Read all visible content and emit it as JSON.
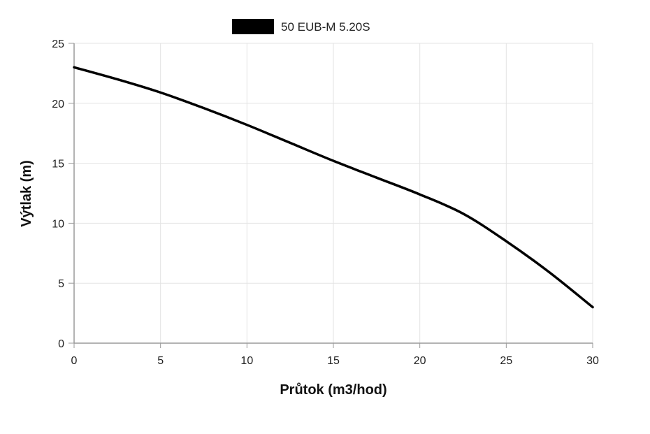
{
  "chart_data": {
    "type": "line",
    "xlabel": "Průtok (m3/hod)",
    "ylabel": "Výtlak (m)",
    "xlim": [
      0,
      30
    ],
    "ylim": [
      0,
      25
    ],
    "x_ticks": [
      "0",
      "5",
      "10",
      "15",
      "20",
      "25",
      "30"
    ],
    "y_ticks": [
      "0",
      "5",
      "10",
      "15",
      "20",
      "25"
    ],
    "grid": true,
    "legend_position": "top-center",
    "series": [
      {
        "name": "50 EUB-M 5.20S",
        "color": "#000000",
        "x": [
          0,
          2.5,
          5,
          7.5,
          10,
          12.5,
          15,
          17.5,
          20,
          22.5,
          25,
          27.5,
          30
        ],
        "y": [
          23.0,
          22.0,
          20.9,
          19.6,
          18.2,
          16.7,
          15.2,
          13.8,
          12.4,
          10.8,
          8.5,
          5.9,
          3.0
        ]
      }
    ]
  }
}
